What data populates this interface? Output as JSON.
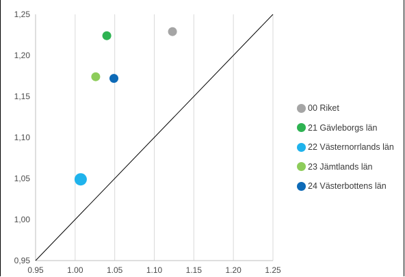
{
  "chart_data": {
    "type": "scatter",
    "title": "",
    "xlabel": "",
    "ylabel": "",
    "xlim": [
      0.95,
      1.25
    ],
    "ylim": [
      0.95,
      1.25
    ],
    "x_ticks": [
      "0.95",
      "1.00",
      "1.05",
      "1.10",
      "1.15",
      "1.20",
      "1.25"
    ],
    "y_ticks": [
      "0,95",
      "1,00",
      "1,05",
      "1,10",
      "1,15",
      "1,20",
      "1,25"
    ],
    "grid": "vertical",
    "reference_line": "y = x",
    "legend_position": "right",
    "series": [
      {
        "name": "00 Riket",
        "color": "#a5a5a5",
        "x": 1.123,
        "y": 1.229,
        "size": "small"
      },
      {
        "name": "21 Gävleborgs län",
        "color": "#2eb352",
        "x": 1.04,
        "y": 1.224,
        "size": "small"
      },
      {
        "name": "22 Västernorrlands län",
        "color": "#1fb3ec",
        "x": 1.007,
        "y": 1.049,
        "size": "large"
      },
      {
        "name": "23 Jämtlands län",
        "color": "#8dcc5a",
        "x": 1.026,
        "y": 1.174,
        "size": "small"
      },
      {
        "name": "24 Västerbottens län",
        "color": "#0d6ab7",
        "x": 1.049,
        "y": 1.172,
        "size": "small"
      }
    ]
  }
}
